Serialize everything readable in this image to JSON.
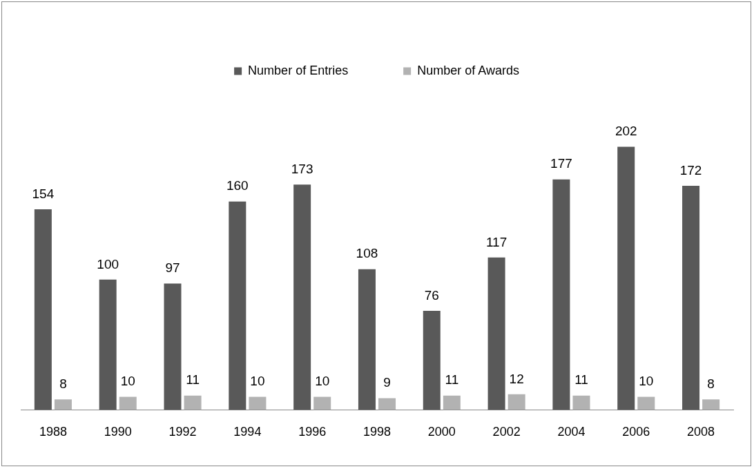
{
  "chart_data": {
    "type": "bar",
    "categories": [
      "1988",
      "1990",
      "1992",
      "1994",
      "1996",
      "1998",
      "2000",
      "2002",
      "2004",
      "2006",
      "2008"
    ],
    "series": [
      {
        "name": "Number of Entries",
        "color": "#595959",
        "values": [
          154,
          100,
          97,
          160,
          173,
          108,
          76,
          117,
          177,
          202,
          172
        ]
      },
      {
        "name": "Number of Awards",
        "color": "#b2b2b2",
        "values": [
          8,
          10,
          11,
          10,
          10,
          9,
          11,
          12,
          11,
          10,
          8
        ]
      }
    ],
    "data_labels": true,
    "legend": "top",
    "grid": false,
    "tick_labels": "x"
  }
}
